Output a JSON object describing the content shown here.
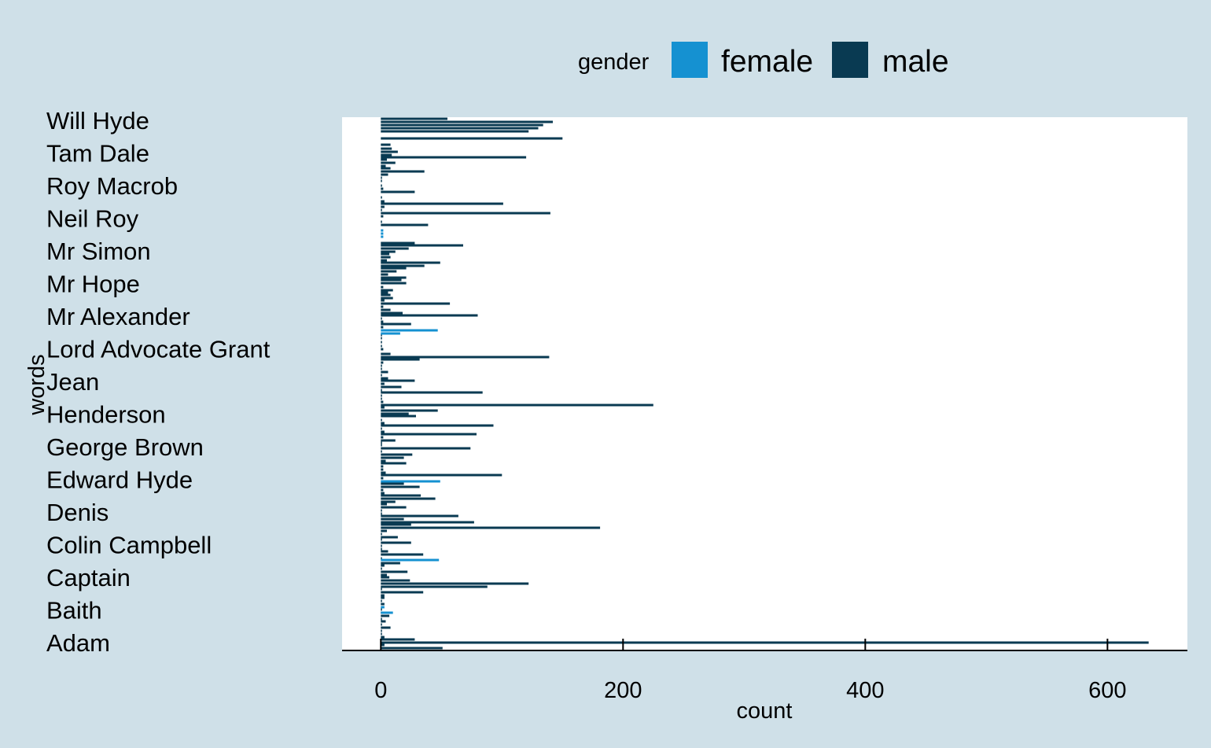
{
  "chart_data": {
    "type": "bar",
    "orientation": "horizontal",
    "xlabel": "count",
    "ylabel": "words",
    "xlim": [
      -32,
      666
    ],
    "xticks": [
      0,
      200,
      400,
      600
    ],
    "ytick_labels": [
      "Will Hyde",
      "Tam Dale",
      "Roy Macrob",
      "Neil Roy",
      "Mr Simon",
      "Mr Hope",
      "Mr Alexander",
      "Lord Advocate Grant",
      "Jean",
      "Henderson",
      "George Brown",
      "Edward Hyde",
      "Denis",
      "Colin Campbell",
      "Captain",
      "Baith",
      "Adam"
    ],
    "grid": false,
    "legend": {
      "title": "gender",
      "position": "top",
      "entries": [
        {
          "label": "female",
          "color": "#1591d1"
        },
        {
          "label": "male",
          "color": "#093a52"
        }
      ]
    },
    "colors": {
      "female": "#1591d1",
      "male": "#093a52",
      "background": "#cfe0e8",
      "panel": "#ffffff"
    },
    "series": [
      {
        "name": "male",
        "values": [
          {
            "y": 151,
            "x": 55
          },
          {
            "y": 155,
            "x": 142
          },
          {
            "y": 159,
            "x": 134
          },
          {
            "y": 163,
            "x": 130
          },
          {
            "y": 167,
            "x": 122
          },
          {
            "y": 176,
            "x": 150
          },
          {
            "y": 184,
            "x": 8
          },
          {
            "y": 189,
            "x": 9
          },
          {
            "y": 193,
            "x": 14
          },
          {
            "y": 197,
            "x": 9
          },
          {
            "y": 200,
            "x": 120
          },
          {
            "y": 203,
            "x": 5
          },
          {
            "y": 207,
            "x": 12
          },
          {
            "y": 211,
            "x": 4
          },
          {
            "y": 214,
            "x": 8
          },
          {
            "y": 218,
            "x": 36
          },
          {
            "y": 222,
            "x": 6
          },
          {
            "y": 226,
            "x": 1
          },
          {
            "y": 230,
            "x": 1
          },
          {
            "y": 236,
            "x": 1
          },
          {
            "y": 240,
            "x": 2
          },
          {
            "y": 244,
            "x": 28
          },
          {
            "y": 251,
            "x": 1
          },
          {
            "y": 256,
            "x": 3
          },
          {
            "y": 259,
            "x": 101
          },
          {
            "y": 263,
            "x": 3
          },
          {
            "y": 267,
            "x": 1
          },
          {
            "y": 271,
            "x": 140
          },
          {
            "y": 275,
            "x": 2
          },
          {
            "y": 282,
            "x": 1
          },
          {
            "y": 286,
            "x": 39
          },
          {
            "y": 309,
            "x": 28
          },
          {
            "y": 312,
            "x": 68
          },
          {
            "y": 316,
            "x": 23
          },
          {
            "y": 320,
            "x": 12
          },
          {
            "y": 323,
            "x": 7
          },
          {
            "y": 327,
            "x": 8
          },
          {
            "y": 331,
            "x": 5
          },
          {
            "y": 334,
            "x": 49
          },
          {
            "y": 338,
            "x": 36
          },
          {
            "y": 341,
            "x": 21
          },
          {
            "y": 345,
            "x": 13
          },
          {
            "y": 349,
            "x": 6
          },
          {
            "y": 353,
            "x": 21
          },
          {
            "y": 356,
            "x": 17
          },
          {
            "y": 360,
            "x": 21
          },
          {
            "y": 365,
            "x": 2
          },
          {
            "y": 369,
            "x": 10
          },
          {
            "y": 372,
            "x": 6
          },
          {
            "y": 375,
            "x": 8
          },
          {
            "y": 379,
            "x": 10
          },
          {
            "y": 382,
            "x": 3
          },
          {
            "y": 386,
            "x": 57
          },
          {
            "y": 390,
            "x": 2
          },
          {
            "y": 394,
            "x": 8
          },
          {
            "y": 398,
            "x": 18
          },
          {
            "y": 401,
            "x": 80
          },
          {
            "y": 405,
            "x": 1
          },
          {
            "y": 409,
            "x": 2
          },
          {
            "y": 412,
            "x": 25
          },
          {
            "y": 416,
            "x": 2
          },
          {
            "y": 426,
            "x": 1
          },
          {
            "y": 430,
            "x": 1
          },
          {
            "y": 435,
            "x": 1
          },
          {
            "y": 440,
            "x": 1
          },
          {
            "y": 444,
            "x": 2
          },
          {
            "y": 450,
            "x": 8
          },
          {
            "y": 454,
            "x": 139
          },
          {
            "y": 457,
            "x": 32
          },
          {
            "y": 461,
            "x": 2
          },
          {
            "y": 465,
            "x": 1
          },
          {
            "y": 469,
            "x": 1
          },
          {
            "y": 473,
            "x": 6
          },
          {
            "y": 477,
            "x": 1
          },
          {
            "y": 481,
            "x": 6
          },
          {
            "y": 484,
            "x": 28
          },
          {
            "y": 488,
            "x": 3
          },
          {
            "y": 492,
            "x": 17
          },
          {
            "y": 496,
            "x": 1
          },
          {
            "y": 499,
            "x": 84
          },
          {
            "y": 503,
            "x": 1
          },
          {
            "y": 507,
            "x": 1
          },
          {
            "y": 511,
            "x": 2
          },
          {
            "y": 515,
            "x": 225
          },
          {
            "y": 518,
            "x": 3
          },
          {
            "y": 522,
            "x": 47
          },
          {
            "y": 526,
            "x": 23
          },
          {
            "y": 529,
            "x": 29
          },
          {
            "y": 534,
            "x": 1
          },
          {
            "y": 538,
            "x": 3
          },
          {
            "y": 541,
            "x": 93
          },
          {
            "y": 545,
            "x": 1
          },
          {
            "y": 549,
            "x": 3
          },
          {
            "y": 552,
            "x": 79
          },
          {
            "y": 556,
            "x": 2
          },
          {
            "y": 560,
            "x": 12
          },
          {
            "y": 563,
            "x": 1
          },
          {
            "y": 566,
            "x": 1
          },
          {
            "y": 570,
            "x": 74
          },
          {
            "y": 574,
            "x": 1
          },
          {
            "y": 578,
            "x": 26
          },
          {
            "y": 582,
            "x": 19
          },
          {
            "y": 586,
            "x": 4
          },
          {
            "y": 589,
            "x": 21
          },
          {
            "y": 593,
            "x": 2
          },
          {
            "y": 597,
            "x": 2
          },
          {
            "y": 601,
            "x": 4
          },
          {
            "y": 604,
            "x": 100
          },
          {
            "y": 608,
            "x": 2
          },
          {
            "y": 615,
            "x": 19
          },
          {
            "y": 619,
            "x": 32
          },
          {
            "y": 623,
            "x": 2
          },
          {
            "y": 627,
            "x": 3
          },
          {
            "y": 630,
            "x": 33
          },
          {
            "y": 634,
            "x": 45
          },
          {
            "y": 638,
            "x": 12
          },
          {
            "y": 641,
            "x": 5
          },
          {
            "y": 645,
            "x": 21
          },
          {
            "y": 649,
            "x": 1
          },
          {
            "y": 653,
            "x": 1
          },
          {
            "y": 656,
            "x": 64
          },
          {
            "y": 660,
            "x": 19
          },
          {
            "y": 664,
            "x": 77
          },
          {
            "y": 667,
            "x": 25
          },
          {
            "y": 671,
            "x": 181
          },
          {
            "y": 675,
            "x": 5
          },
          {
            "y": 679,
            "x": 1
          },
          {
            "y": 683,
            "x": 14
          },
          {
            "y": 686,
            "x": 1
          },
          {
            "y": 690,
            "x": 25
          },
          {
            "y": 694,
            "x": 1
          },
          {
            "y": 698,
            "x": 1
          },
          {
            "y": 701,
            "x": 6
          },
          {
            "y": 705,
            "x": 35
          },
          {
            "y": 710,
            "x": 1
          },
          {
            "y": 716,
            "x": 16
          },
          {
            "y": 719,
            "x": 3
          },
          {
            "y": 723,
            "x": 1
          },
          {
            "y": 727,
            "x": 22
          },
          {
            "y": 731,
            "x": 5
          },
          {
            "y": 734,
            "x": 7
          },
          {
            "y": 738,
            "x": 24
          },
          {
            "y": 742,
            "x": 122
          },
          {
            "y": 746,
            "x": 88
          },
          {
            "y": 749,
            "x": 1
          },
          {
            "y": 753,
            "x": 35
          },
          {
            "y": 757,
            "x": 3
          },
          {
            "y": 760,
            "x": 3
          },
          {
            "y": 764,
            "x": 1
          },
          {
            "y": 768,
            "x": 3
          },
          {
            "y": 775,
            "x": 1
          },
          {
            "y": 779,
            "x": 2
          },
          {
            "y": 783,
            "x": 7
          },
          {
            "y": 787,
            "x": 1
          },
          {
            "y": 790,
            "x": 4
          },
          {
            "y": 794,
            "x": 1
          },
          {
            "y": 798,
            "x": 8
          },
          {
            "y": 802,
            "x": 1
          },
          {
            "y": 806,
            "x": 1
          },
          {
            "y": 810,
            "x": 3
          },
          {
            "y": 813,
            "x": 28
          },
          {
            "y": 817,
            "x": 634
          },
          {
            "y": 820,
            "x": 3
          },
          {
            "y": 824,
            "x": 51
          }
        ]
      },
      {
        "name": "female",
        "values": [
          {
            "y": 293,
            "x": 2
          },
          {
            "y": 297,
            "x": 2
          },
          {
            "y": 301,
            "x": 2
          },
          {
            "y": 420,
            "x": 47
          },
          {
            "y": 424,
            "x": 16
          },
          {
            "y": 612,
            "x": 49
          },
          {
            "y": 712,
            "x": 48
          },
          {
            "y": 772,
            "x": 3
          },
          {
            "y": 779,
            "x": 10
          }
        ]
      }
    ]
  }
}
